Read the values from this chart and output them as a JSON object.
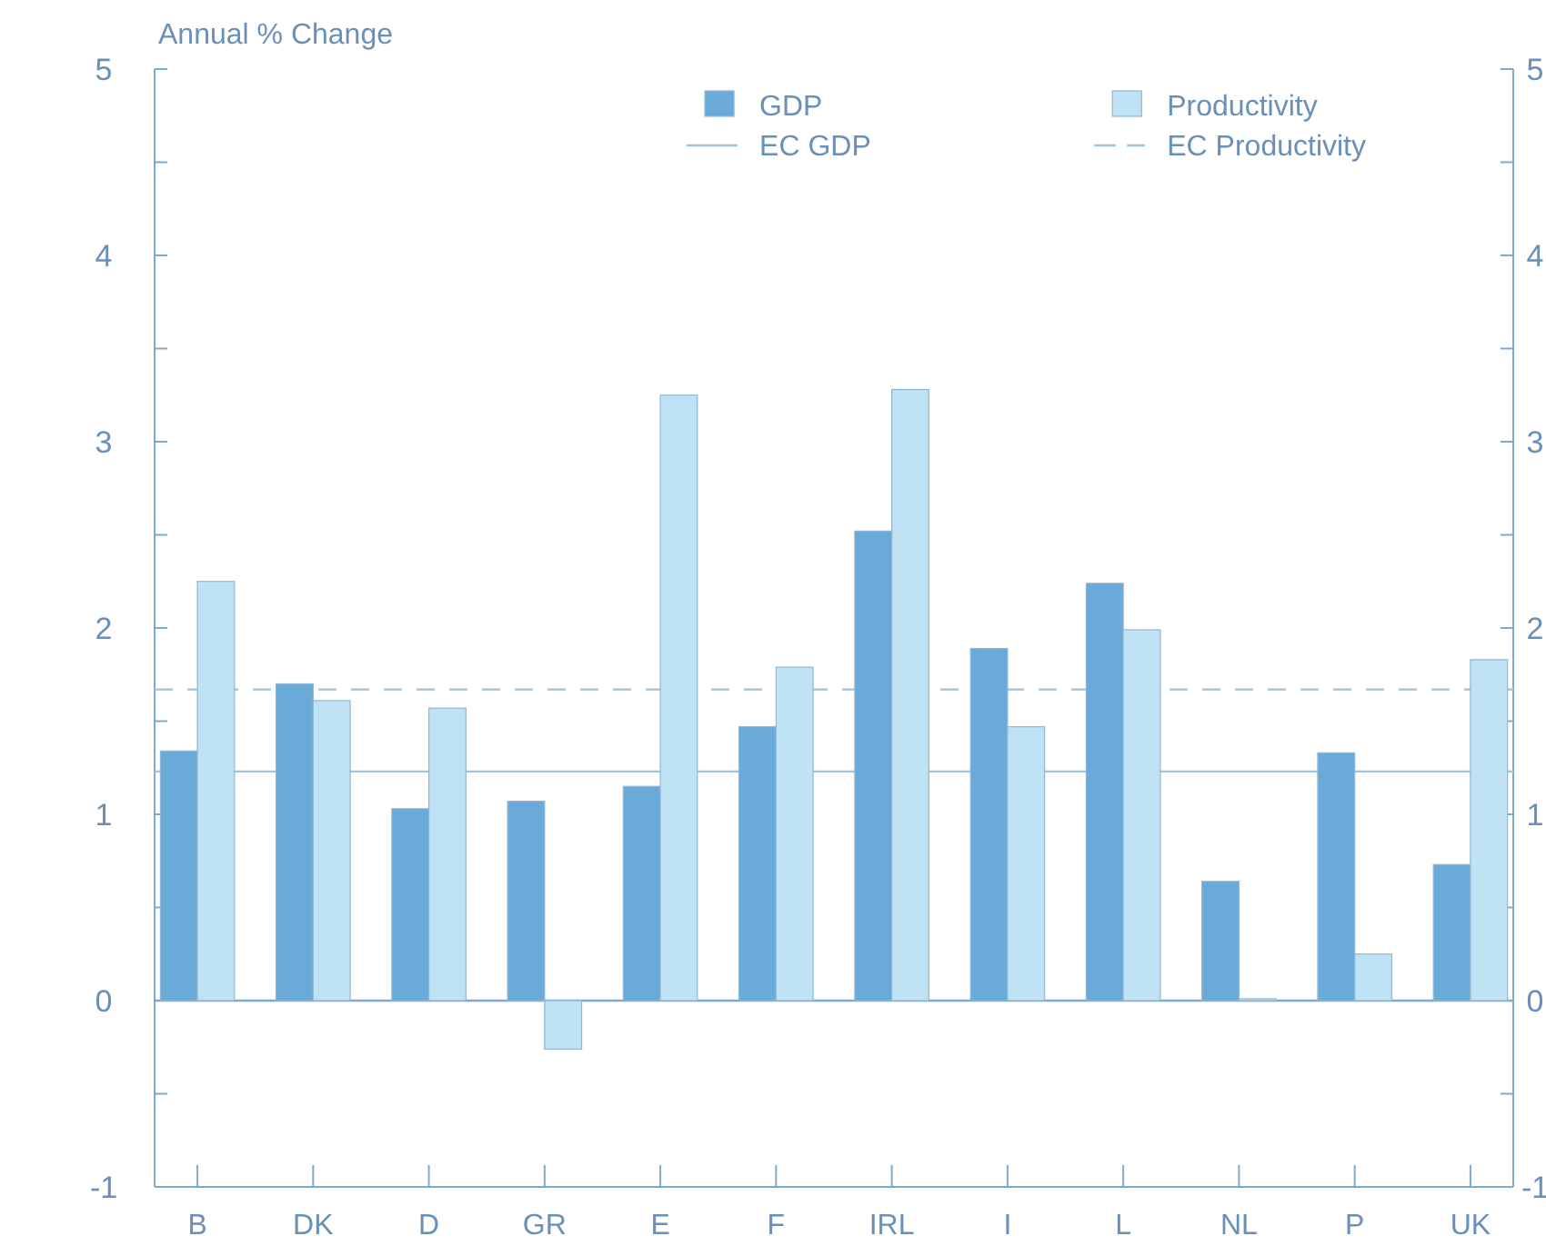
{
  "chart_data": {
    "type": "bar",
    "ylabel": "Annual % Change",
    "categories": [
      "B",
      "DK",
      "D",
      "GR",
      "E",
      "F",
      "IRL",
      "I",
      "L",
      "NL",
      "P",
      "UK"
    ],
    "series": [
      {
        "name": "GDP",
        "color": "#6aaad8",
        "values": [
          1.34,
          1.7,
          1.03,
          1.07,
          1.15,
          1.47,
          2.52,
          1.89,
          2.24,
          0.64,
          1.33,
          0.73
        ]
      },
      {
        "name": "Productivity",
        "color": "#bfe3f5",
        "values": [
          2.25,
          1.61,
          1.57,
          -0.26,
          3.25,
          1.79,
          3.28,
          1.47,
          1.99,
          0.01,
          0.25,
          1.83
        ]
      }
    ],
    "ylim": [
      -1,
      5
    ],
    "yticks": [
      -1,
      {
        "value": -0.5,
        "label": null
      },
      0,
      {
        "value": 0.5,
        "label": null
      },
      1,
      {
        "value": 1.5,
        "label": null
      },
      2,
      {
        "value": 2.5,
        "label": null
      },
      3,
      {
        "value": 3.5,
        "label": null
      },
      4,
      {
        "value": 4.5,
        "label": null
      },
      5
    ],
    "y2lim": [
      -1,
      5
    ],
    "y2ticks": [
      -1,
      {
        "value": -0.5,
        "label": null
      },
      0,
      {
        "value": 0.5,
        "label": null
      },
      1,
      {
        "value": 1.5,
        "label": null
      },
      2,
      {
        "value": 2.5,
        "label": null
      },
      3,
      {
        "value": 3.5,
        "label": null
      },
      4,
      {
        "value": 4.5,
        "label": null
      },
      5
    ],
    "ref_lines": [
      {
        "axis": "y",
        "value": 0,
        "color": "#7fa9cf",
        "line_style": "solid"
      },
      {
        "axis": "y",
        "value": 1.23,
        "label": "EC GDP",
        "color": "#9cc4e0",
        "line_style": "solid"
      },
      {
        "axis": "y",
        "value": 1.67,
        "label": "EC Productivity",
        "color": "#9cc4e0",
        "line_style": "dashed"
      }
    ],
    "legend": "top",
    "grid": false
  }
}
